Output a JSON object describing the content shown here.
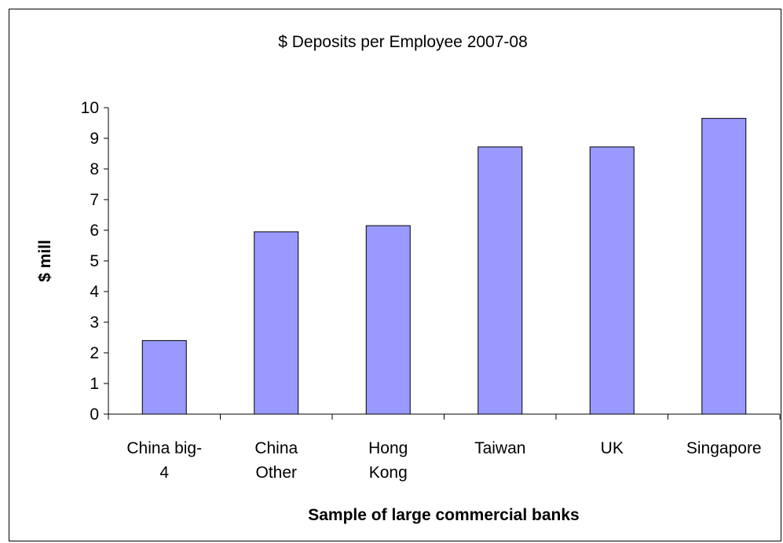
{
  "chart_data": {
    "type": "bar",
    "title": "$ Deposits per Employee 2007-08",
    "xlabel": "Sample of large commercial banks",
    "ylabel": "$ mill",
    "categories": [
      [
        "China big-",
        "4"
      ],
      [
        "China",
        "Other"
      ],
      [
        "Hong",
        "Kong"
      ],
      [
        "Taiwan"
      ],
      [
        "UK"
      ],
      [
        "Singapore"
      ]
    ],
    "category_names": [
      "China big-4",
      "China Other",
      "Hong Kong",
      "Taiwan",
      "UK",
      "Singapore"
    ],
    "values": [
      2.4,
      5.95,
      6.15,
      8.72,
      8.72,
      9.65
    ],
    "ylim": [
      0,
      10
    ],
    "yticks": [
      0,
      1,
      2,
      3,
      4,
      5,
      6,
      7,
      8,
      9,
      10
    ],
    "bar_color": "#9999ff",
    "grid": false,
    "legend": "none"
  }
}
